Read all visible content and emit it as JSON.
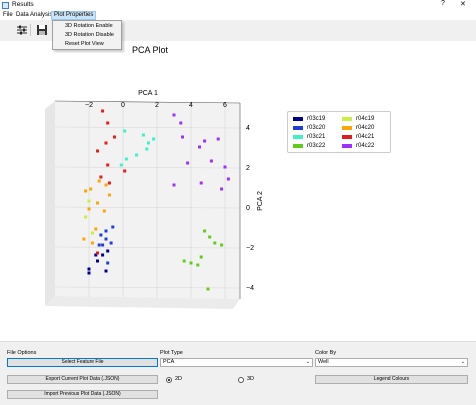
{
  "window": {
    "title": "Results",
    "help": "?",
    "close": "✕"
  },
  "menubar": {
    "items": [
      "File",
      "Data Analysis",
      "Plot Properties"
    ],
    "active": "Plot Properties"
  },
  "plot_menu": {
    "items": [
      "3D Rotation Enable",
      "3D Rotation Disable",
      "Reset Plot View"
    ]
  },
  "toolbar": {
    "icons": [
      "settings-sliders-icon",
      "save-icon"
    ]
  },
  "plot": {
    "title": "PCA Plot",
    "x_axis_label": "PCA 1",
    "y_axis_label": "PCA 2",
    "x_ticks": [
      "−2",
      "0",
      "2",
      "4",
      "6"
    ],
    "y_ticks": [
      "4",
      "2",
      "0",
      "−2",
      "−4"
    ]
  },
  "legend": {
    "entries": [
      {
        "label": "r03c19",
        "color": "#00008b"
      },
      {
        "label": "r04c19",
        "color": "#c8f03c"
      },
      {
        "label": "r03c20",
        "color": "#1f3ddb"
      },
      {
        "label": "r04c20",
        "color": "#ffa500"
      },
      {
        "label": "r03c21",
        "color": "#3ff0c8"
      },
      {
        "label": "r04c21",
        "color": "#e51c1c"
      },
      {
        "label": "r03c22",
        "color": "#5fcc1c"
      },
      {
        "label": "r04c22",
        "color": "#9b30ff"
      }
    ]
  },
  "chart_data": {
    "type": "scatter",
    "title": "PCA Plot",
    "xlabel": "PCA 1",
    "ylabel": "PCA 2",
    "xlim": [
      -3,
      7
    ],
    "ylim": [
      -4.5,
      5
    ],
    "series": [
      {
        "name": "r03c19",
        "color": "#00008b",
        "points": [
          [
            -2,
            -3.1
          ],
          [
            -2,
            -3.3
          ],
          [
            -1.6,
            -2.4
          ],
          [
            -1.2,
            -2.4
          ],
          [
            -1.0,
            -3.2
          ],
          [
            -0.9,
            -2.2
          ],
          [
            -1.5,
            -2.7
          ]
        ]
      },
      {
        "name": "r03c20",
        "color": "#1f3ddb",
        "points": [
          [
            -1.3,
            -1.4
          ],
          [
            -1.0,
            -1.6
          ],
          [
            -0.7,
            -1.8
          ],
          [
            -0.6,
            -1.0
          ],
          [
            -1.2,
            -1.9
          ],
          [
            -0.9,
            -2.8
          ],
          [
            -1.4,
            -1.9
          ],
          [
            -1.0,
            -1.2
          ]
        ]
      },
      {
        "name": "r03c21",
        "color": "#3ff0c8",
        "points": [
          [
            0.1,
            3.8
          ],
          [
            1.2,
            3.6
          ],
          [
            1.5,
            3.2
          ],
          [
            0.8,
            2.6
          ],
          [
            -0.1,
            2.1
          ],
          [
            0.2,
            2.4
          ],
          [
            1.8,
            3.4
          ],
          [
            1.4,
            2.9
          ]
        ]
      },
      {
        "name": "r03c22",
        "color": "#5fcc1c",
        "points": [
          [
            4.8,
            -1.2
          ],
          [
            5.1,
            -1.5
          ],
          [
            3.6,
            -2.7
          ],
          [
            4.0,
            -2.8
          ],
          [
            4.4,
            -2.9
          ],
          [
            4.6,
            -2.5
          ],
          [
            5.4,
            -1.8
          ],
          [
            5.8,
            -1.9
          ],
          [
            5.0,
            -4.1
          ]
        ]
      },
      {
        "name": "r04c19",
        "color": "#c8f03c",
        "points": [
          [
            -2.0,
            0.3
          ],
          [
            -2.2,
            -0.5
          ],
          [
            -1.8,
            -1.3
          ]
        ]
      },
      {
        "name": "r04c20",
        "color": "#ffa500",
        "points": [
          [
            -2.2,
            0.8
          ],
          [
            -1.9,
            0.9
          ],
          [
            -2.0,
            -0.1
          ],
          [
            -1.6,
            -1.1
          ],
          [
            -1.4,
            1.3
          ],
          [
            -1.0,
            1.1
          ],
          [
            -0.8,
            0.6
          ],
          [
            -2.3,
            -1.6
          ],
          [
            -1.8,
            -1.8
          ],
          [
            -1.1,
            -0.2
          ],
          [
            -1.5,
            0.2
          ]
        ]
      },
      {
        "name": "r04c21",
        "color": "#e51c1c",
        "points": [
          [
            -1.2,
            4.8
          ],
          [
            -0.9,
            4.2
          ],
          [
            -0.5,
            3.5
          ],
          [
            -1.0,
            3.2
          ],
          [
            -1.5,
            2.8
          ],
          [
            -0.9,
            2.1
          ],
          [
            -1.3,
            1.5
          ],
          [
            -0.8,
            1.2
          ],
          [
            0.1,
            1.8
          ],
          [
            -1.5,
            -2.3
          ]
        ]
      },
      {
        "name": "r04c22",
        "color": "#9b30ff",
        "points": [
          [
            3.0,
            4.6
          ],
          [
            3.4,
            4.2
          ],
          [
            3.5,
            3.5
          ],
          [
            4.5,
            3.0
          ],
          [
            4.8,
            3.3
          ],
          [
            5.6,
            3.4
          ],
          [
            3.8,
            2.2
          ],
          [
            5.2,
            2.3
          ],
          [
            6.0,
            2.0
          ],
          [
            6.2,
            1.4
          ],
          [
            3.0,
            1.1
          ],
          [
            4.6,
            1.2
          ],
          [
            5.8,
            0.9
          ]
        ]
      }
    ]
  },
  "controls": {
    "file_options": {
      "label": "File Options",
      "select_feature_file": "Select Feature File",
      "export": "Export Current Plot Data (.JSON)",
      "import": "Import Previous Plot Data (.JSON)"
    },
    "plot_type": {
      "label": "Plot Type",
      "value": "PCA",
      "options": [
        "2D",
        "3D"
      ],
      "selected": "2D"
    },
    "color_by": {
      "label": "Color By",
      "value": "Well",
      "legend_colours": "Legend Colours"
    }
  }
}
